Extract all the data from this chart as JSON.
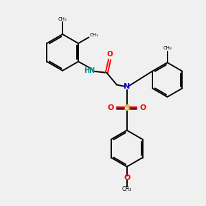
{
  "background_color": "#f0f0f0",
  "bond_color": "#000000",
  "n_color": "#0000cc",
  "o_color": "#ff0000",
  "s_color": "#cccc00",
  "nh_color": "#008888",
  "figsize": [
    3.0,
    3.0
  ],
  "dpi": 100,
  "xlim": [
    0,
    10
  ],
  "ylim": [
    0,
    10
  ]
}
